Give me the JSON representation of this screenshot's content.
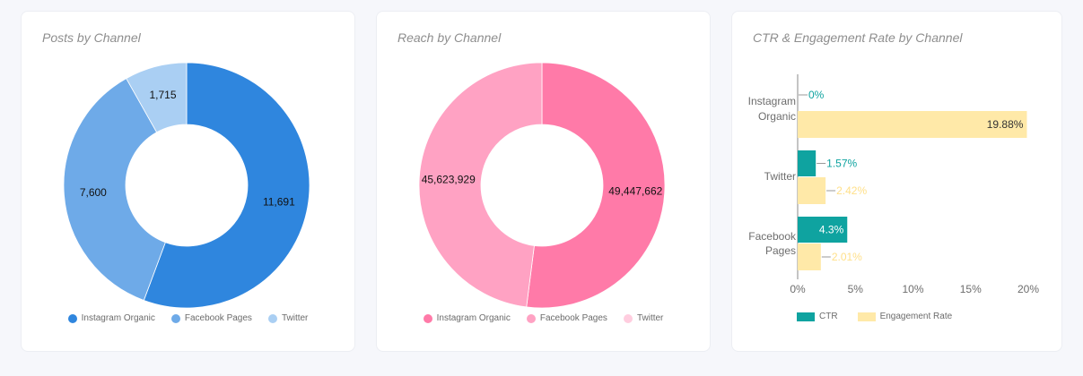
{
  "cards": [
    {
      "title": "Posts by Channel"
    },
    {
      "title": "Reach by Channel"
    },
    {
      "title": "CTR & Engagement Rate by Channel"
    }
  ],
  "legends": {
    "posts": [
      {
        "label": "Instagram Organic",
        "color": "#2f86de"
      },
      {
        "label": "Facebook Pages",
        "color": "#6eaae8"
      },
      {
        "label": "Twitter",
        "color": "#aacff3"
      }
    ],
    "reach": [
      {
        "label": "Instagram Organic",
        "color": "#ff7aa8"
      },
      {
        "label": "Facebook Pages",
        "color": "#ffa2c3"
      },
      {
        "label": "Twitter",
        "color": "#ffcddf"
      }
    ],
    "ctr": [
      {
        "label": "CTR",
        "color": "#0fa3a0"
      },
      {
        "label": "Engagement Rate",
        "color": "#ffe9a8"
      }
    ]
  },
  "chart_data": [
    {
      "type": "pie",
      "title": "Posts by Channel",
      "donut": true,
      "categories": [
        "Instagram Organic",
        "Facebook Pages",
        "Twitter"
      ],
      "values": [
        11691,
        7600,
        1715
      ],
      "labels": [
        "11,691",
        "7,600",
        "1,715"
      ],
      "colors": [
        "#2f86de",
        "#6eaae8",
        "#aacff3"
      ],
      "legend_position": "bottom"
    },
    {
      "type": "pie",
      "title": "Reach by Channel",
      "donut": true,
      "categories": [
        "Instagram Organic",
        "Facebook Pages",
        "Twitter"
      ],
      "values": [
        49447662,
        45623929,
        0
      ],
      "labels": [
        "49,447,662",
        "45,623,929",
        ""
      ],
      "colors": [
        "#ff7aa8",
        "#ffa2c3",
        "#ffcddf"
      ],
      "legend_position": "bottom"
    },
    {
      "type": "bar",
      "orientation": "horizontal",
      "title": "CTR & Engagement Rate by Channel",
      "categories": [
        "Instagram Organic",
        "Twitter",
        "Facebook Pages"
      ],
      "series": [
        {
          "name": "CTR",
          "values": [
            0,
            1.57,
            4.3
          ],
          "labels": [
            "0%",
            "1.57%",
            "4.3%"
          ],
          "color": "#0fa3a0"
        },
        {
          "name": "Engagement Rate",
          "values": [
            19.88,
            2.42,
            2.01
          ],
          "labels": [
            "19.88%",
            "2.42%",
            "2.01%"
          ],
          "color": "#ffe9a8"
        }
      ],
      "xlim": [
        0,
        20
      ],
      "xticks": [
        "0%",
        "5%",
        "10%",
        "15%",
        "20%"
      ],
      "xlabel": "",
      "ylabel": "",
      "grid": false,
      "legend_position": "bottom"
    }
  ]
}
